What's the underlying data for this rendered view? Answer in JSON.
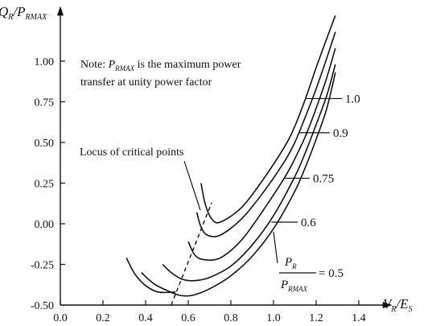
{
  "chart_data": {
    "type": "line",
    "title": "",
    "xlabel": {
      "main": "V",
      "sub": "R",
      "sep": "/",
      "main2": "E",
      "sub2": "S"
    },
    "ylabel": {
      "main": "Q",
      "sub": "R",
      "sep": "/",
      "main2": "P",
      "sub2": "RMAX"
    },
    "xlim": [
      0,
      1.55
    ],
    "ylim": [
      -0.5,
      1.3
    ],
    "xticks": [
      "0.0",
      "0.2",
      "0.4",
      "0.6",
      "0.8",
      "1.0",
      "1.2",
      "1.4"
    ],
    "yticks": [
      "1.00",
      "0.75",
      "0.50",
      "0.25",
      "0.00",
      "-0.25",
      "-0.50"
    ],
    "note": {
      "prefix": "Note: ",
      "sym": "P",
      "sub": "RMAX",
      "line1_rest": " is the maximum power",
      "line2": "transfer at unity power factor"
    },
    "locus_label": "Locus of critical points",
    "pf_label": {
      "num": "P",
      "num_sub": "R",
      "den": "P",
      "den_sub": "RMAX",
      "eq": "= 0.5"
    },
    "series": [
      {
        "label": "1.0",
        "points": [
          [
            0.66,
            0.25
          ],
          [
            0.68,
            0.12
          ],
          [
            0.71,
            0.03
          ],
          [
            0.75,
            0.01
          ],
          [
            0.85,
            0.1
          ],
          [
            0.95,
            0.27
          ],
          [
            1.05,
            0.47
          ],
          [
            1.1,
            0.6
          ],
          [
            1.15,
            0.77
          ],
          [
            1.2,
            0.96
          ],
          [
            1.25,
            1.14
          ],
          [
            1.29,
            1.28
          ]
        ]
      },
      {
        "label": "0.9",
        "points": [
          [
            0.64,
            0.07
          ],
          [
            0.66,
            -0.02
          ],
          [
            0.69,
            -0.07
          ],
          [
            0.75,
            -0.07
          ],
          [
            0.85,
            0.03
          ],
          [
            0.95,
            0.19
          ],
          [
            1.05,
            0.38
          ],
          [
            1.1,
            0.5
          ],
          [
            1.15,
            0.66
          ],
          [
            1.2,
            0.83
          ],
          [
            1.25,
            1.02
          ],
          [
            1.29,
            1.18
          ]
        ]
      },
      {
        "label": "0.75",
        "points": [
          [
            0.6,
            -0.11
          ],
          [
            0.63,
            -0.19
          ],
          [
            0.67,
            -0.22
          ],
          [
            0.75,
            -0.21
          ],
          [
            0.85,
            -0.1
          ],
          [
            0.95,
            0.08
          ],
          [
            1.05,
            0.28
          ],
          [
            1.1,
            0.4
          ],
          [
            1.15,
            0.54
          ],
          [
            1.2,
            0.71
          ],
          [
            1.25,
            0.9
          ],
          [
            1.29,
            1.08
          ]
        ]
      },
      {
        "label": "0.6",
        "points": [
          [
            0.48,
            -0.25
          ],
          [
            0.52,
            -0.3
          ],
          [
            0.57,
            -0.34
          ],
          [
            0.63,
            -0.35
          ],
          [
            0.7,
            -0.33
          ],
          [
            0.8,
            -0.26
          ],
          [
            0.9,
            -0.13
          ],
          [
            1.0,
            0.05
          ],
          [
            1.1,
            0.29
          ],
          [
            1.15,
            0.44
          ],
          [
            1.2,
            0.61
          ],
          [
            1.25,
            0.79
          ],
          [
            1.29,
            0.98
          ]
        ]
      },
      {
        "label": "0.5",
        "points": [
          [
            0.38,
            -0.3
          ],
          [
            0.44,
            -0.37
          ],
          [
            0.5,
            -0.41
          ],
          [
            0.56,
            -0.44
          ],
          [
            0.62,
            -0.44
          ],
          [
            0.7,
            -0.4
          ],
          [
            0.8,
            -0.32
          ],
          [
            0.9,
            -0.2
          ],
          [
            1.0,
            -0.03
          ],
          [
            1.1,
            0.2
          ],
          [
            1.15,
            0.35
          ],
          [
            1.2,
            0.52
          ],
          [
            1.25,
            0.71
          ],
          [
            1.29,
            0.93
          ]
        ]
      }
    ],
    "extra_segment": {
      "points": [
        [
          0.31,
          -0.21
        ],
        [
          0.35,
          -0.31
        ],
        [
          0.4,
          -0.38
        ],
        [
          0.46,
          -0.42
        ],
        [
          0.54,
          -0.42
        ]
      ]
    },
    "locus": {
      "points": [
        [
          0.52,
          -0.5
        ],
        [
          0.71,
          0.13
        ]
      ]
    },
    "grid": false,
    "legend": "labels on curves"
  }
}
